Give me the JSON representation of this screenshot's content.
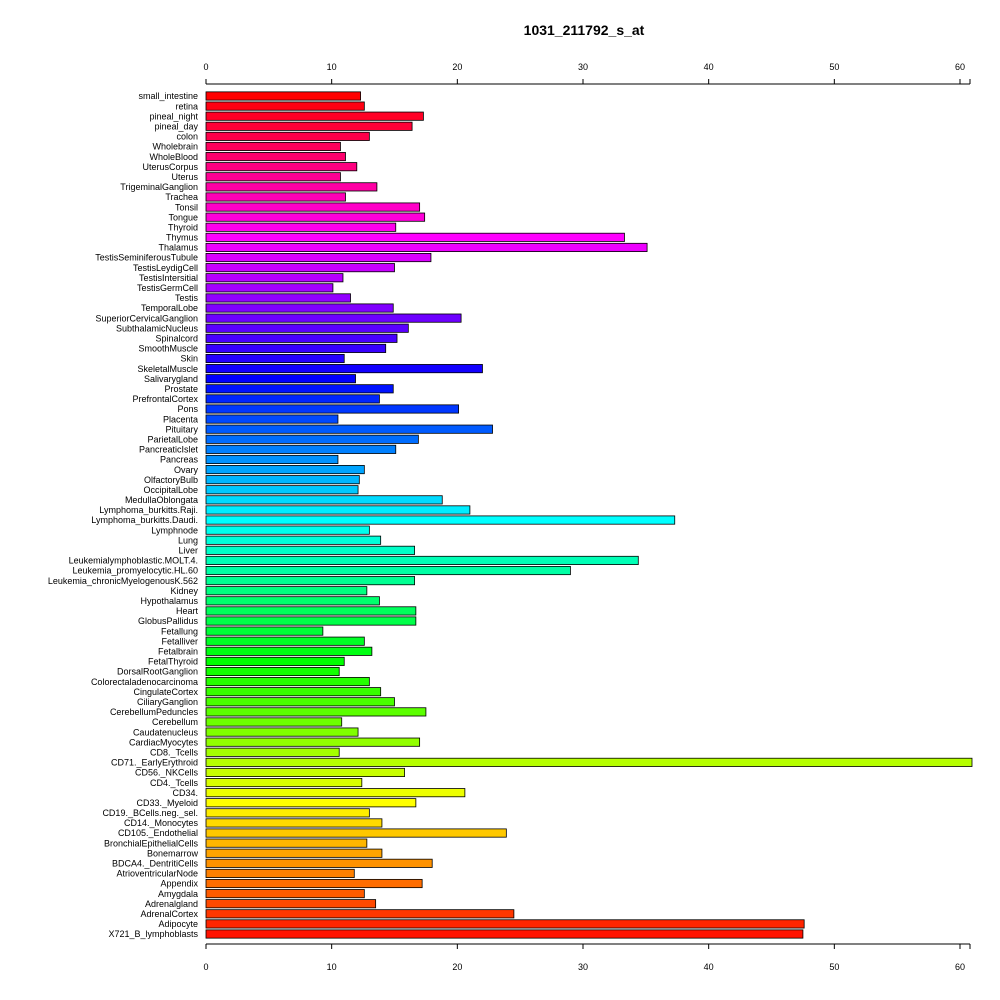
{
  "chart_data": {
    "type": "bar",
    "orientation": "horizontal",
    "title": "1031_211792_s_at",
    "xlabel": "",
    "ylabel": "",
    "xlim": [
      0,
      60
    ],
    "ticks": [
      0,
      10,
      20,
      30,
      40,
      50,
      60
    ],
    "tick_labels": [
      "0",
      "10",
      "20",
      "30",
      "40",
      "50",
      "60"
    ],
    "axes_positions": [
      "top",
      "bottom"
    ],
    "grid": false,
    "legend": "none",
    "color_scheme": "rainbow",
    "categories": [
      "small_intestine",
      "retina",
      "pineal_night",
      "pineal_day",
      "colon",
      "Wholebrain",
      "WholeBlood",
      "UterusCorpus",
      "Uterus",
      "TrigeminalGanglion",
      "Trachea",
      "Tonsil",
      "Tongue",
      "Thyroid",
      "Thymus",
      "Thalamus",
      "TestisSeminiferousTubule",
      "TestisLeydigCell",
      "TestisIntersitial",
      "TestisGermCell",
      "Testis",
      "TemporalLobe",
      "SuperiorCervicalGanglion",
      "SubthalamicNucleus",
      "Spinalcord",
      "SmoothMuscle",
      "Skin",
      "SkeletalMuscle",
      "Salivarygland",
      "Prostate",
      "PrefrontalCortex",
      "Pons",
      "Placenta",
      "Pituitary",
      "ParietalLobe",
      "PancreaticIslet",
      "Pancreas",
      "Ovary",
      "OlfactoryBulb",
      "OccipitalLobe",
      "MedullaOblongata",
      "Lymphoma_burkitts.Raji.",
      "Lymphoma_burkitts.Daudi.",
      "Lymphnode",
      "Lung",
      "Liver",
      "Leukemialymphoblastic.MOLT.4.",
      "Leukemia_promyelocytic.HL.60",
      "Leukemia_chronicMyelogenousK.562",
      "Kidney",
      "Hypothalamus",
      "Heart",
      "GlobusPallidus",
      "Fetallung",
      "Fetalliver",
      "Fetalbrain",
      "FetalThyroid",
      "DorsalRootGanglion",
      "Colorectaladenocarcinoma",
      "CingulateCortex",
      "CiliaryGanglion",
      "CerebellumPeduncles",
      "Cerebellum",
      "Caudatenucleus",
      "CardiacMyocytes",
      "CD8._Tcells",
      "CD71._EarlyErythroid",
      "CD56._NKCells",
      "CD4._Tcells",
      "CD34.",
      "CD33._Myeloid",
      "CD19._BCells.neg._sel.",
      "CD14._Monocytes",
      "CD105._Endothelial",
      "BronchialEpithelialCells",
      "Bonemarrow",
      "BDCA4._DentritiCells",
      "AtrioventricularNode",
      "Appendix",
      "Amygdala",
      "Adrenalgland",
      "AdrenalCortex",
      "Adipocyte",
      "X721_B_lymphoblasts"
    ],
    "values": [
      12.3,
      12.6,
      17.3,
      16.4,
      13.0,
      10.7,
      11.1,
      12.0,
      10.7,
      13.6,
      11.1,
      17.0,
      17.4,
      15.1,
      33.3,
      35.1,
      17.9,
      15.0,
      10.9,
      10.1,
      11.5,
      14.9,
      20.3,
      16.1,
      15.2,
      14.3,
      11.0,
      22.0,
      11.9,
      14.9,
      13.8,
      20.1,
      10.5,
      22.8,
      16.9,
      15.1,
      10.5,
      12.6,
      12.2,
      12.1,
      18.8,
      21.0,
      37.3,
      13.0,
      13.9,
      16.6,
      34.4,
      29.0,
      16.6,
      12.8,
      13.8,
      16.7,
      16.7,
      9.3,
      12.6,
      13.2,
      11.0,
      10.6,
      13.0,
      13.9,
      15.0,
      17.5,
      10.8,
      12.1,
      17.0,
      10.6,
      61.0,
      15.8,
      12.4,
      20.6,
      16.7,
      13.0,
      14.0,
      23.9,
      12.8,
      14.0,
      18.0,
      11.8,
      17.2,
      12.6,
      13.5,
      24.5,
      47.6,
      47.5
    ]
  }
}
